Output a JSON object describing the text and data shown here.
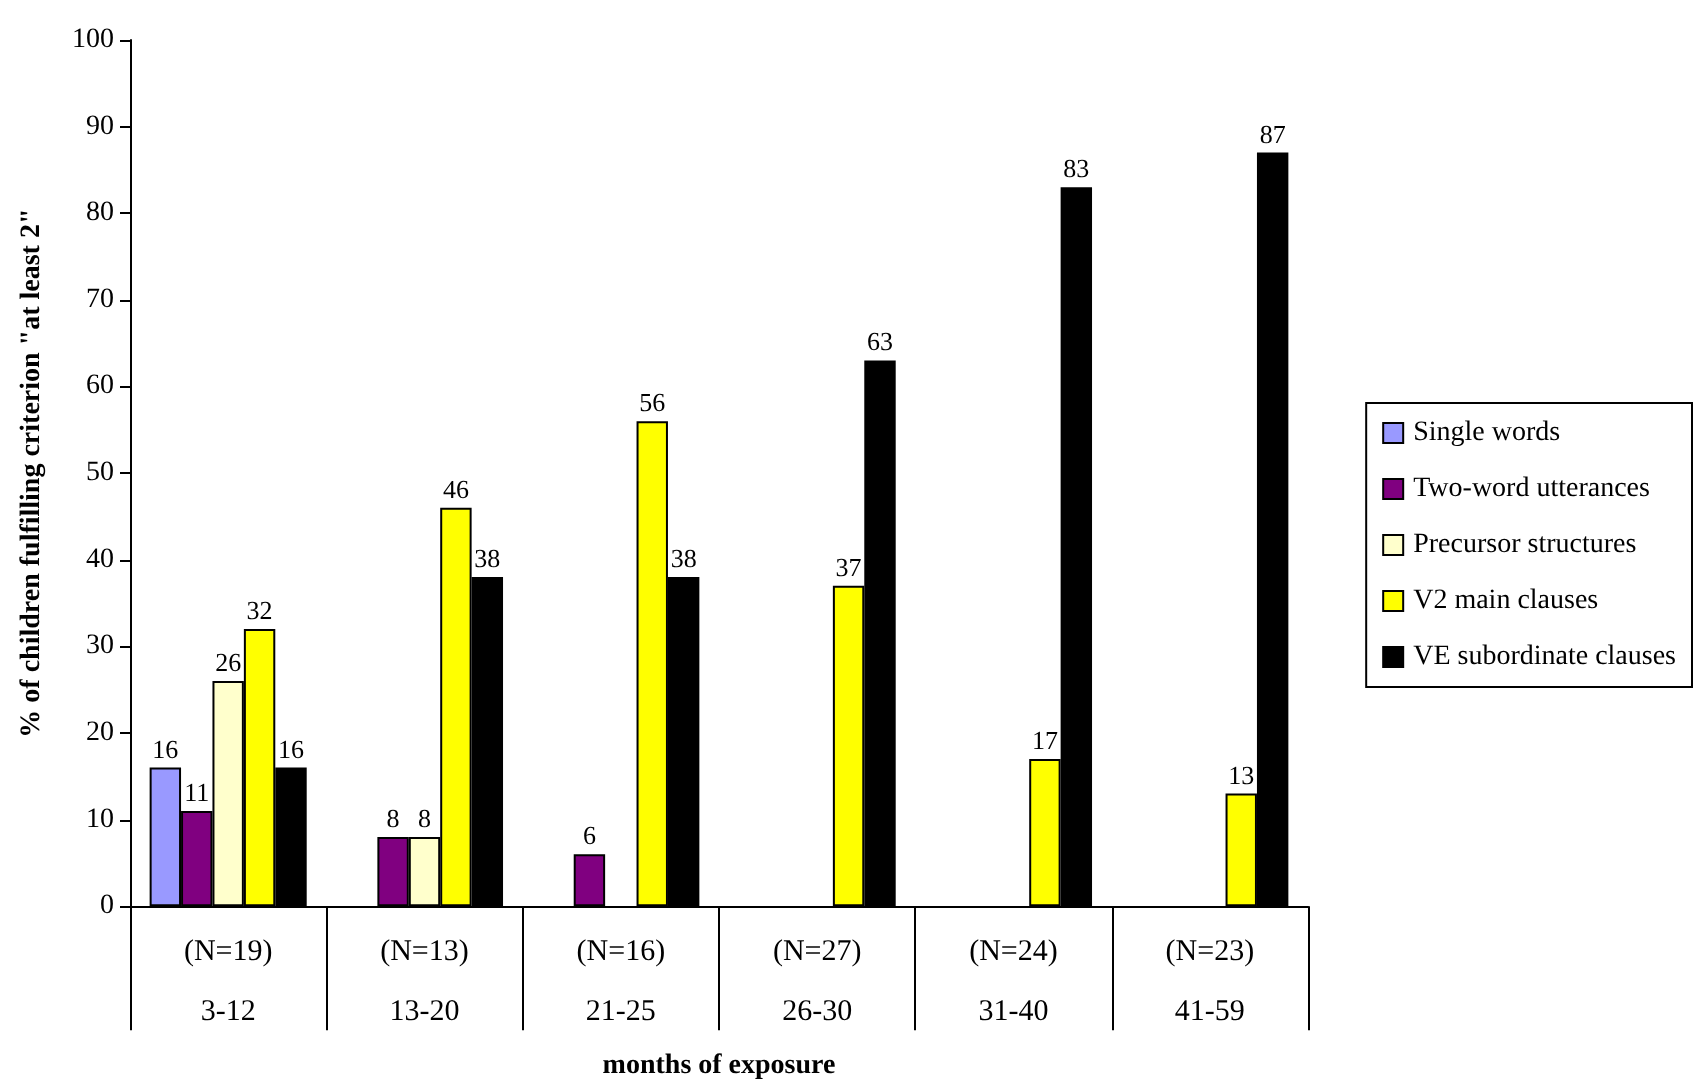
{
  "chart_data": {
    "type": "bar",
    "xlabel": "months of exposure",
    "ylabel": "% of children fulfilling criterion \"at least 2\"",
    "categories": [
      "(N=19)\n3-12",
      "(N=13)\n13-20",
      "(N=16)\n21-25",
      "(N=27)\n26-30",
      "(N=24)\n31-40",
      "(N=23)\n41-59"
    ],
    "series": [
      {
        "name": "Single words",
        "color": "#9999ff",
        "values": [
          16,
          null,
          null,
          null,
          null,
          null
        ]
      },
      {
        "name": "Two-word utterances",
        "color": "#800080",
        "values": [
          11,
          8,
          6,
          null,
          null,
          null
        ]
      },
      {
        "name": "Precursor structures",
        "color": "#ffffcc",
        "values": [
          26,
          8,
          null,
          null,
          null,
          null
        ]
      },
      {
        "name": "V2 main clauses",
        "color": "#ffff00",
        "values": [
          32,
          46,
          56,
          37,
          17,
          13
        ]
      },
      {
        "name": "VE subordinate clauses",
        "color": "#000000",
        "values": [
          16,
          38,
          38,
          63,
          83,
          87
        ]
      }
    ],
    "ylim": [
      0,
      100
    ],
    "yticks": [
      0,
      10,
      20,
      30,
      40,
      50,
      60,
      70,
      80,
      90,
      100
    ],
    "data_labels": true,
    "legend": "right"
  }
}
